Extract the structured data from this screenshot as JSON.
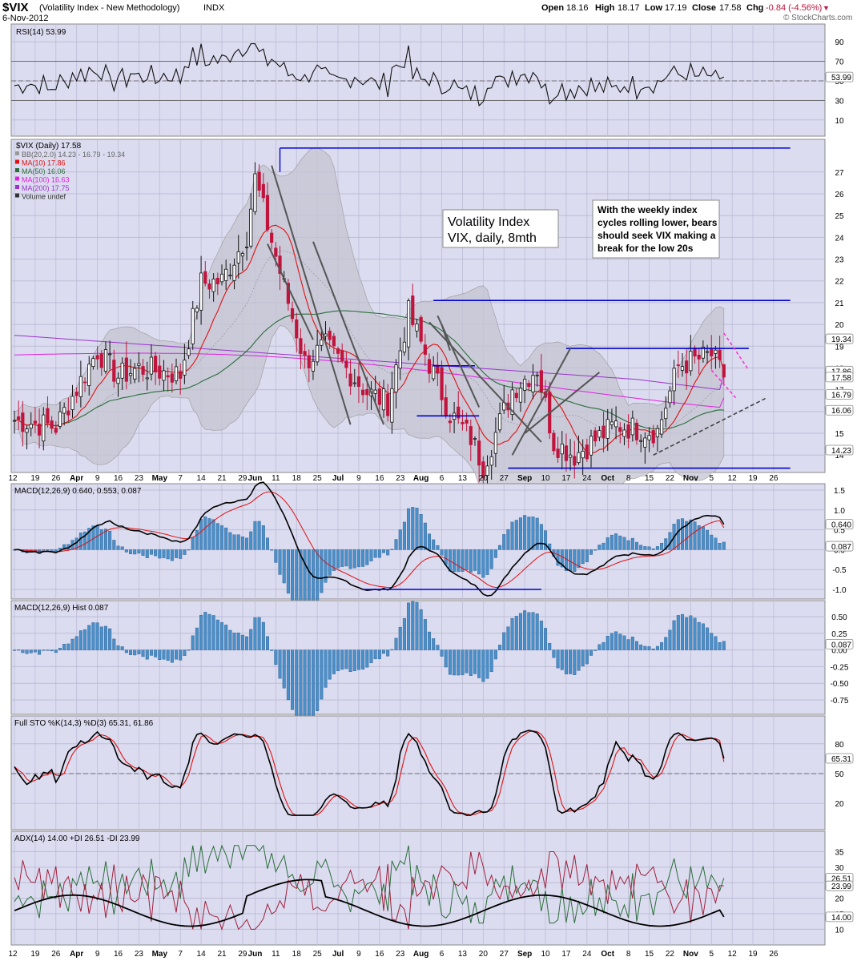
{
  "header": {
    "symbol": "$VIX",
    "name": "(Volatility Index - New Methodology)",
    "exchange": "INDX",
    "date": "6-Nov-2012",
    "open_label": "Open",
    "open": "18.16",
    "high_label": "High",
    "high": "18.17",
    "low_label": "Low",
    "low": "17.19",
    "close_label": "Close",
    "close": "17.58",
    "chg_label": "Chg",
    "chg": "-0.84 (-4.56%)",
    "watermark": "© StockCharts.com"
  },
  "colors": {
    "panel_bg": "#dcdcf0",
    "grid": "#bbbbd6",
    "up": "#111111",
    "down": "#c0143c",
    "ma10": "#e01010",
    "ma50": "#2a6e3a",
    "ma100": "#e020e0",
    "ma200": "#9933cc",
    "bb": "#999999",
    "hist": "#4a8fc8",
    "line_blue": "#0000cc",
    "rsi": "#111111"
  },
  "x_axis": {
    "ticks": [
      "12",
      "19",
      "26",
      "Apr",
      "9",
      "16",
      "23",
      "May",
      "7",
      "14",
      "21",
      "29",
      "Jun",
      "11",
      "18",
      "25",
      "Jul",
      "9",
      "16",
      "23",
      "Aug",
      "6",
      "13",
      "20",
      "27",
      "Sep",
      "10",
      "17",
      "24",
      "Oct",
      "8",
      "15",
      "22",
      "Nov",
      "5",
      "12",
      "19",
      "26"
    ]
  },
  "rsi": {
    "label": "RSI(14) 53.99",
    "value_tag": "53.99",
    "y_ticks": [
      "90",
      "70",
      "50",
      "30",
      "10"
    ]
  },
  "price": {
    "legend": {
      "main": "$VIX (Daily) 17.58",
      "bb": "BB(20,2.0) 14.23 - 16.79 - 19.34",
      "ma10": "MA(10) 17.86",
      "ma50": "MA(50) 16.06",
      "ma100": "MA(100) 16.63",
      "ma200": "MA(200) 17.75",
      "volume": "Volume undef"
    },
    "y_ticks": [
      "27",
      "26",
      "25",
      "24",
      "23",
      "22",
      "21",
      "20",
      "19",
      "18",
      "17",
      "16",
      "15",
      "14"
    ],
    "value_tags": [
      "19.34",
      "17.86",
      "17.58",
      "17.75",
      "16.79",
      "16.06",
      "14.23"
    ],
    "title_box": "Volatility Index\nVIX, daily, 8mth",
    "note_box": "With the weekly index\ncycles rolling lower, bears\nshould seek VIX making a\nbreak for the low 20s"
  },
  "macd": {
    "label": "MACD(12,26,9) 0.640, 0.553, 0.087",
    "y_ticks": [
      "1.5",
      "1.0",
      "0.5",
      "0.0",
      "-0.5",
      "-1.0"
    ],
    "value_tags": [
      "0.640",
      "0.087"
    ]
  },
  "macd_hist": {
    "label": "MACD(12,26,9) Hist 0.087",
    "y_ticks": [
      "0.50",
      "0.25",
      "0.00",
      "-0.25",
      "-0.50",
      "-0.75"
    ],
    "value_tag": "0.087"
  },
  "sto": {
    "label": "Full STO %K(14,3) %D(3) 65.31, 61.86",
    "y_ticks": [
      "80",
      "50",
      "20"
    ],
    "value_tag": "65.31"
  },
  "adx": {
    "label": "ADX(14) 14.00 +DI 26.51 -DI 23.99",
    "y_ticks": [
      "35",
      "30",
      "25",
      "20",
      "15",
      "10"
    ],
    "value_tags": [
      "26.51",
      "23.99",
      "14.00"
    ]
  },
  "chart_data": {
    "type": "candlestick",
    "title": "$VIX (Volatility Index - New Methodology)",
    "subtitle": "6-Nov-2012",
    "x_range": [
      "12-Mar-2012",
      "26-Nov-2012"
    ],
    "ylim": [
      13.2,
      28.5
    ],
    "latest": {
      "open": 18.16,
      "high": 18.17,
      "low": 17.19,
      "close": 17.58
    },
    "close_anchors": [
      {
        "date": "2012-03-12",
        "close": 15.6
      },
      {
        "date": "2012-03-26",
        "close": 15.3
      },
      {
        "date": "2012-04-09",
        "close": 18.8
      },
      {
        "date": "2012-04-16",
        "close": 17.6
      },
      {
        "date": "2012-04-23",
        "close": 18.0
      },
      {
        "date": "2012-05-07",
        "close": 17.7
      },
      {
        "date": "2012-05-14",
        "close": 21.9
      },
      {
        "date": "2012-05-21",
        "close": 22.0
      },
      {
        "date": "2012-05-29",
        "close": 24.1
      },
      {
        "date": "2012-06-01",
        "close": 26.7
      },
      {
        "date": "2012-06-11",
        "close": 21.7
      },
      {
        "date": "2012-06-18",
        "close": 18.3
      },
      {
        "date": "2012-06-25",
        "close": 19.0
      },
      {
        "date": "2012-07-09",
        "close": 16.9
      },
      {
        "date": "2012-07-16",
        "close": 16.4
      },
      {
        "date": "2012-07-23",
        "close": 20.5
      },
      {
        "date": "2012-08-06",
        "close": 15.9
      },
      {
        "date": "2012-08-13",
        "close": 14.8
      },
      {
        "date": "2012-08-17",
        "close": 13.5
      },
      {
        "date": "2012-08-27",
        "close": 17.0
      },
      {
        "date": "2012-09-04",
        "close": 18.0
      },
      {
        "date": "2012-09-10",
        "close": 14.6
      },
      {
        "date": "2012-09-17",
        "close": 14.0
      },
      {
        "date": "2012-10-01",
        "close": 15.4
      },
      {
        "date": "2012-10-08",
        "close": 15.2
      },
      {
        "date": "2012-10-15",
        "close": 15.1
      },
      {
        "date": "2012-10-22",
        "close": 18.1
      },
      {
        "date": "2012-11-02",
        "close": 18.6
      },
      {
        "date": "2012-11-06",
        "close": 17.58
      }
    ],
    "horizontal_levels": [
      28.1,
      21.1,
      18.9,
      18.1,
      15.8,
      13.4
    ],
    "indicators": {
      "rsi14": 53.99,
      "bb": {
        "lower": 14.23,
        "mid": 16.79,
        "upper": 19.34
      },
      "ma10": 17.86,
      "ma50": 16.06,
      "ma100": 16.63,
      "ma200": 17.75,
      "macd": {
        "macd": 0.64,
        "signal": 0.553,
        "hist": 0.087
      },
      "full_sto": {
        "k": 65.31,
        "d": 61.86
      },
      "adx14": {
        "adx": 14.0,
        "plus_di": 26.51,
        "minus_di": 23.99
      }
    }
  }
}
